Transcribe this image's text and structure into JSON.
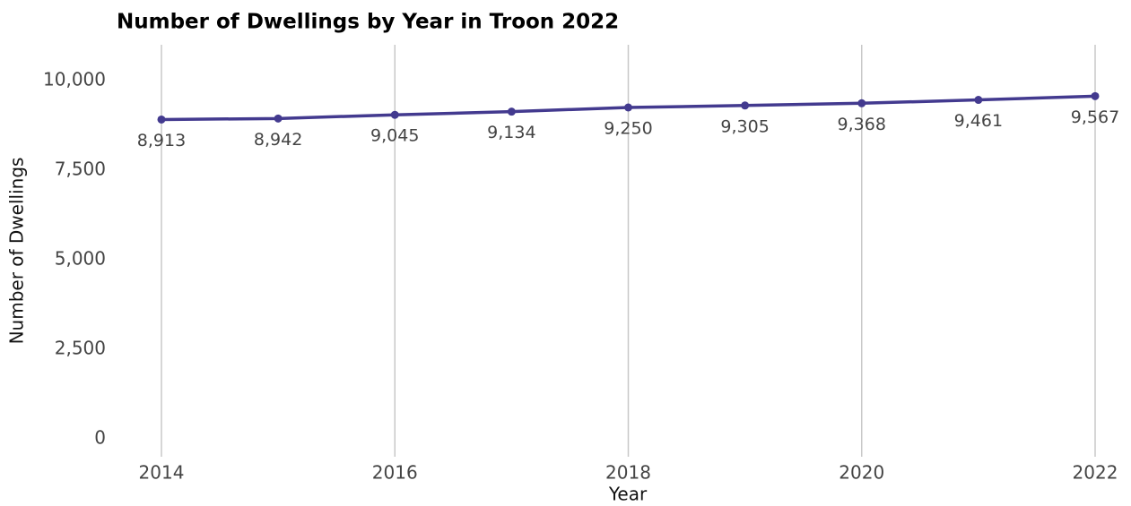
{
  "chart_data": {
    "type": "line",
    "title": "Number of Dwellings by Year in Troon 2022",
    "x_label": "Year",
    "y_label": "Number of Dwellings",
    "x": [
      2014,
      2015,
      2016,
      2017,
      2018,
      2019,
      2020,
      2021,
      2022
    ],
    "values": [
      8913,
      8942,
      9045,
      9134,
      9250,
      9305,
      9368,
      9461,
      9567
    ],
    "value_labels": [
      "8,913",
      "8,942",
      "9,045",
      "9,134",
      "9,250",
      "9,305",
      "9,368",
      "9,461",
      "9,567"
    ],
    "color": "#433a8f",
    "xlim": [
      2014,
      2022
    ],
    "xticks": [
      2014,
      2016,
      2018,
      2020,
      2022
    ],
    "ylim": [
      -500,
      11000
    ],
    "yticks": [
      0,
      {
        "value": 2500,
        "label": "2,500"
      },
      {
        "value": 5000,
        "label": "5,000"
      },
      {
        "value": 7500,
        "label": "7,500"
      },
      {
        "value": 10000,
        "label": "10,000"
      }
    ],
    "grid": "x"
  }
}
